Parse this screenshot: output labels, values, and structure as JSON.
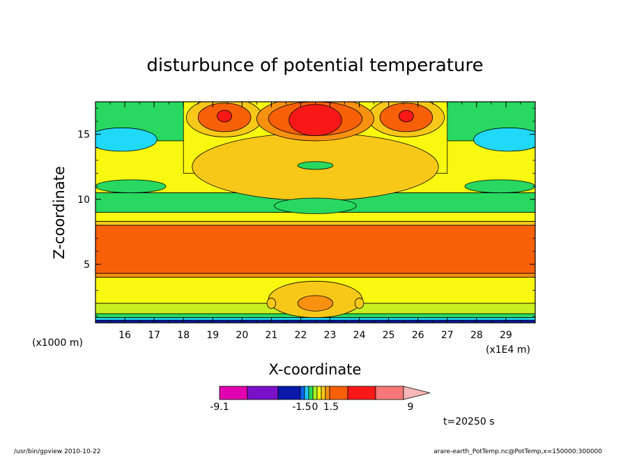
{
  "chart_data": {
    "type": "heatmap",
    "title": "disturbunce of potential temperature",
    "xlabel": "X-coordinate",
    "ylabel": "Z-coordinate",
    "x_unit": "(x1E4 m)",
    "y_unit": "(x1000 m)",
    "xlim": [
      15.0,
      30.0
    ],
    "ylim": [
      0.5,
      17.5
    ],
    "x_ticks": [
      "16",
      "17",
      "18",
      "19",
      "20",
      "21",
      "22",
      "23",
      "24",
      "25",
      "26",
      "27",
      "28",
      "29"
    ],
    "y_ticks": [
      "5",
      "10",
      "15"
    ],
    "colorbar": {
      "tick_labels": [
        "-9.1",
        "-1.5",
        "0",
        "1.5",
        "9"
      ],
      "colors": [
        "#e000b0",
        "#7a10c8",
        "#0818a8",
        "#0a64f0",
        "#20c8f8",
        "#28d860",
        "#a8f020",
        "#f8f810",
        "#f8c818",
        "#f89010",
        "#f86008",
        "#f81818",
        "#f87878",
        "#f8b8b8"
      ]
    },
    "field_colors": {
      "deep_blue": "#0818a8",
      "blue": "#0a64f0",
      "cyan": "#20d8f8",
      "green": "#28d860",
      "yellow_green": "#c8f020",
      "yellow": "#f8f810",
      "light_orange": "#f8c818",
      "orange": "#f89010",
      "dark_orange": "#f86008",
      "red": "#f81818"
    },
    "annotation": "t=20250 s"
  },
  "footer": {
    "left": "/usr/bin/gpview   2010-10-22",
    "right": "arare-earth_PotTemp.nc@PotTemp,x=150000:300000"
  }
}
